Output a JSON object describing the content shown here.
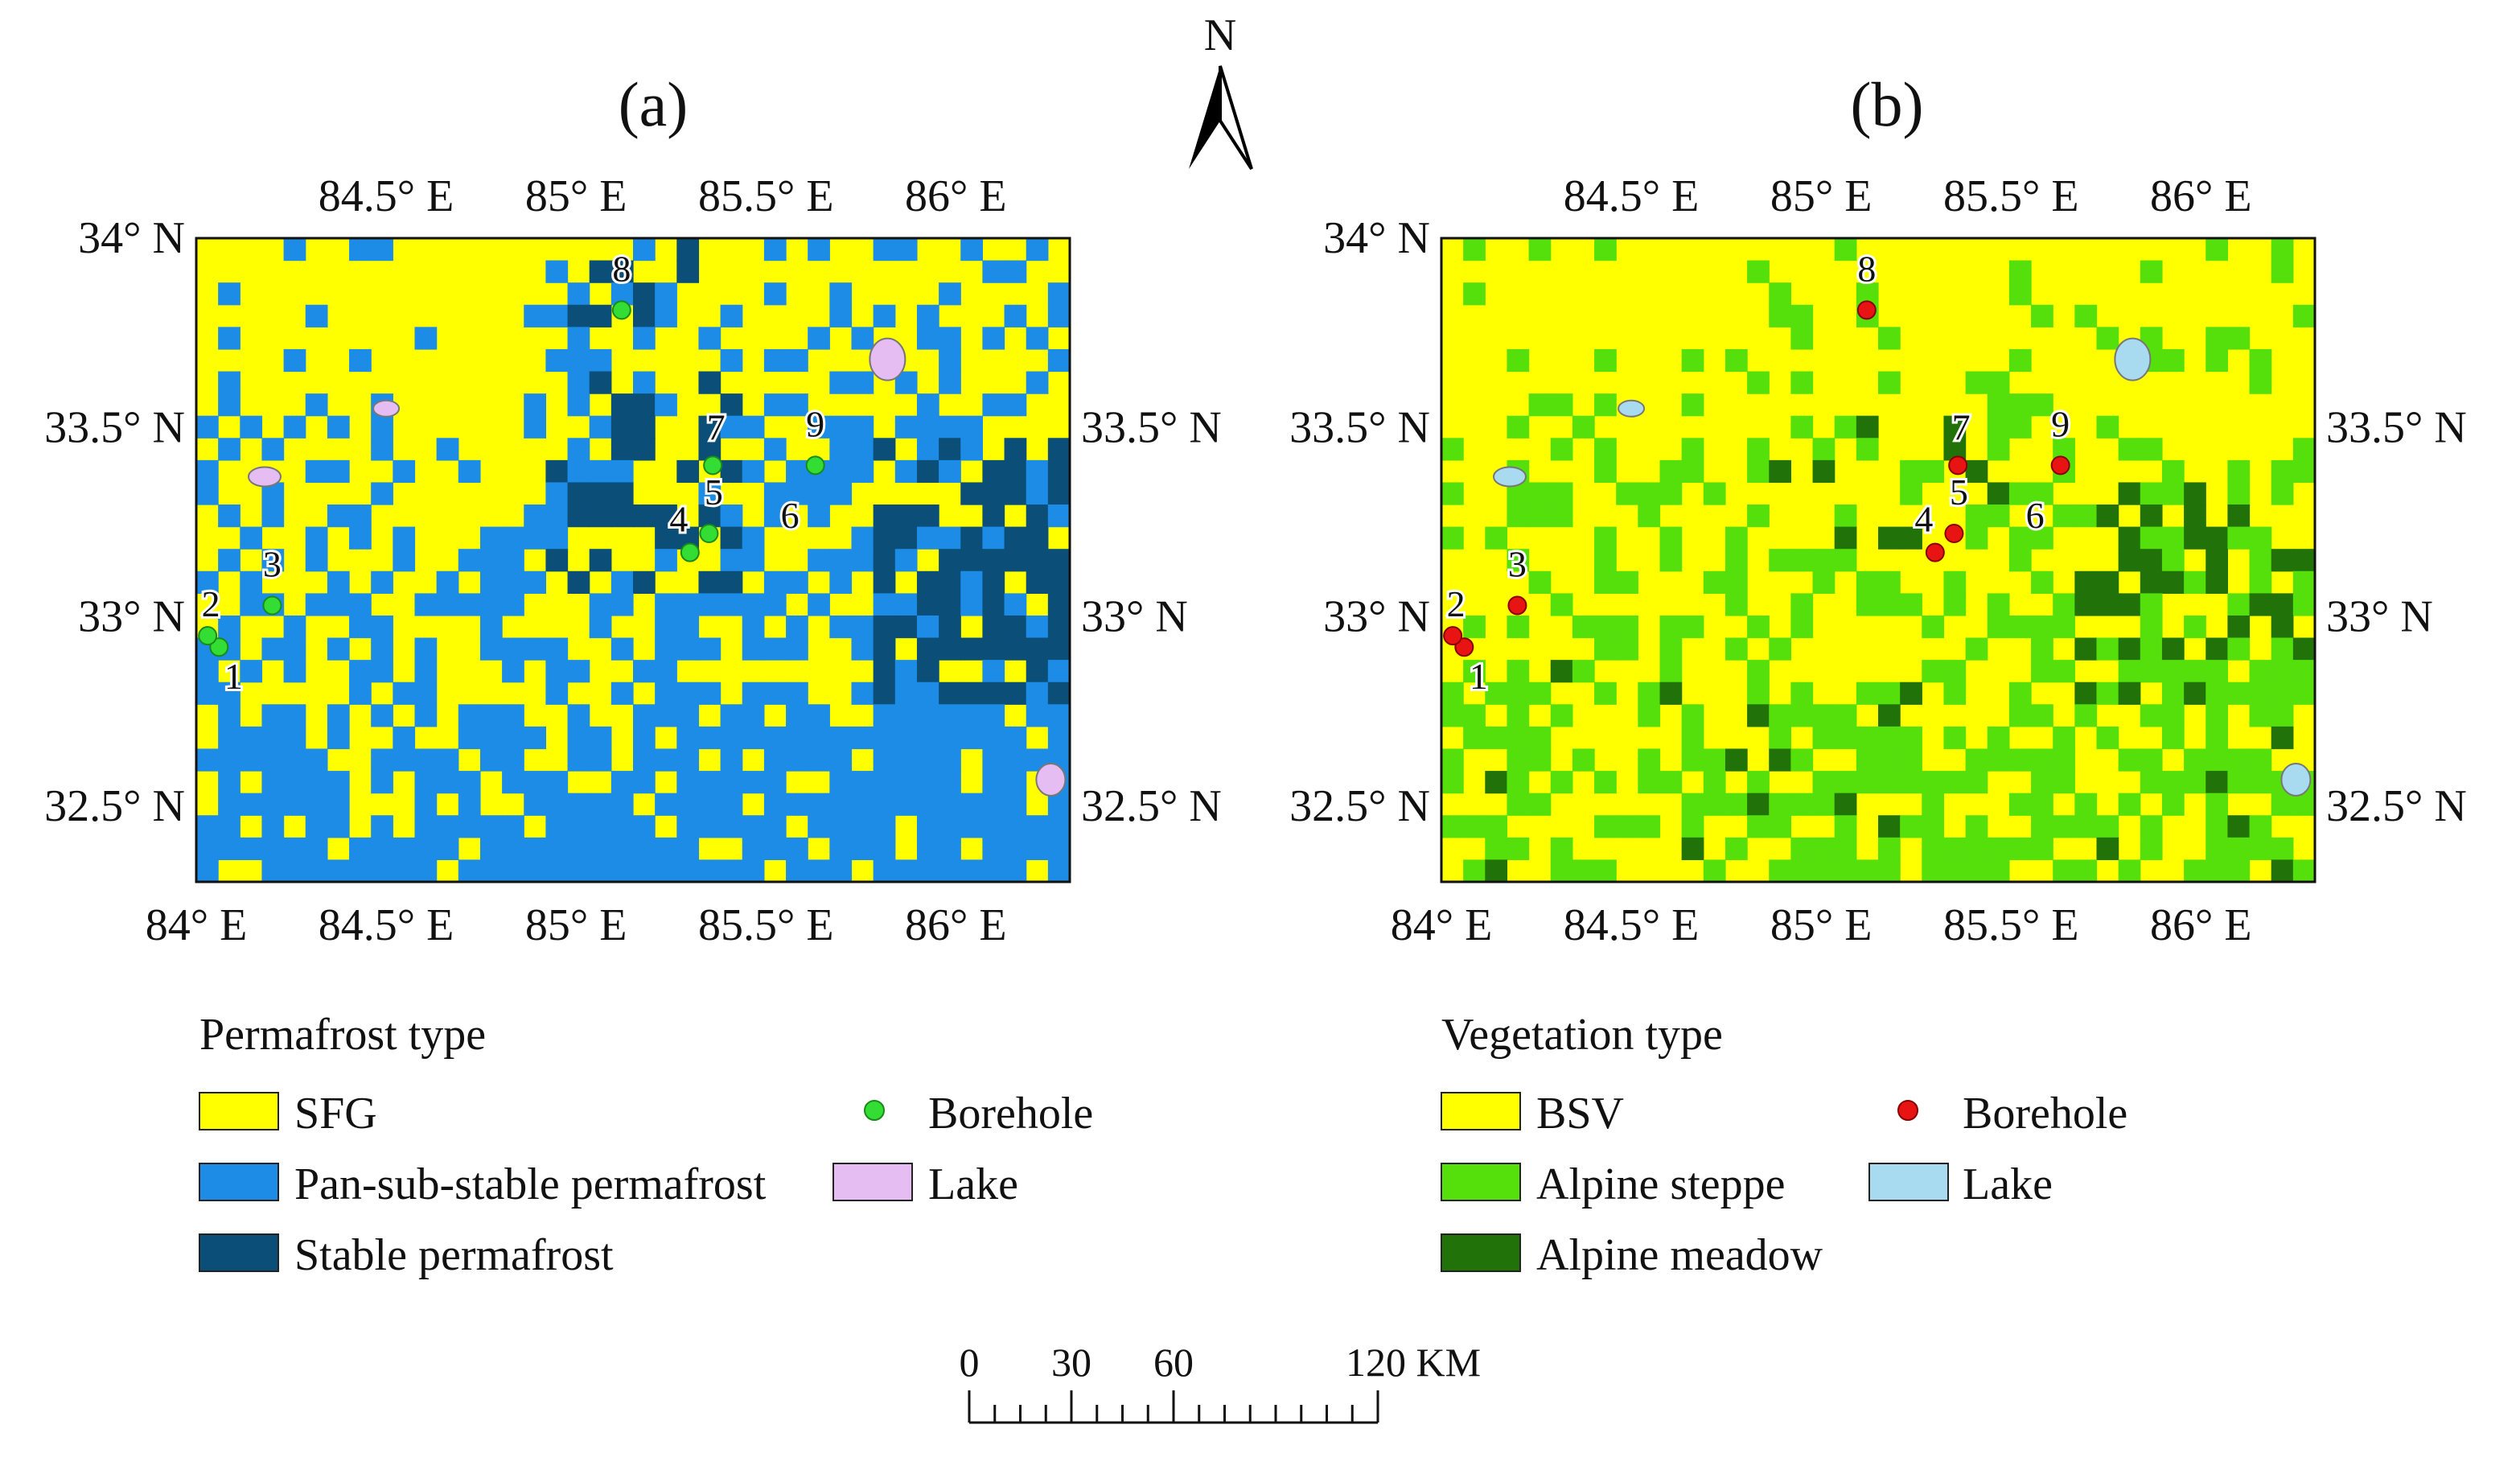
{
  "north_arrow": {
    "label": "N"
  },
  "panels": [
    {
      "id": "a",
      "tag": "(a)",
      "colors": {
        "base": "#ffff00",
        "c1": "#1d8ce6",
        "c2": "#0b4f79",
        "lake": "#e6bdf2",
        "borehole": "#33dd33",
        "borehole_stroke": "#1a8a1a"
      },
      "seed": 7,
      "legend": {
        "title": "Permafrost type",
        "classes": [
          {
            "label": "SFG",
            "color": "#ffff00"
          },
          {
            "label": "Pan-sub-stable permafrost",
            "color": "#1d8ce6"
          },
          {
            "label": "Stable permafrost",
            "color": "#0b4f79"
          }
        ],
        "borehole_label": "Borehole",
        "lake_label": "Lake"
      }
    },
    {
      "id": "b",
      "tag": "(b)",
      "colors": {
        "base": "#ffff00",
        "c1": "#55e00c",
        "c2": "#217309",
        "lake": "#a8daf0",
        "borehole": "#e81414",
        "borehole_stroke": "#8a0000"
      },
      "seed": 19,
      "legend": {
        "title": "Vegetation type",
        "classes": [
          {
            "label": "BSV",
            "color": "#ffff00"
          },
          {
            "label": "Alpine steppe",
            "color": "#55e00c"
          },
          {
            "label": "Alpine meadow",
            "color": "#217309"
          }
        ],
        "borehole_label": "Borehole",
        "lake_label": "Lake"
      }
    }
  ],
  "axes": {
    "lon_range": [
      84.0,
      86.3
    ],
    "lat_range": [
      32.3,
      34.0
    ],
    "bottom_ticks": [
      {
        "value": 84.0,
        "label": "84° E"
      },
      {
        "value": 84.5,
        "label": "84.5° E"
      },
      {
        "value": 85.0,
        "label": "85° E"
      },
      {
        "value": 85.5,
        "label": "85.5° E"
      },
      {
        "value": 86.0,
        "label": "86° E"
      }
    ],
    "top_ticks": [
      {
        "value": 84.5,
        "label": "84.5° E"
      },
      {
        "value": 85.0,
        "label": "85° E"
      },
      {
        "value": 85.5,
        "label": "85.5° E"
      },
      {
        "value": 86.0,
        "label": "86° E"
      }
    ],
    "left_ticks": [
      {
        "value": 34.0,
        "label": "34° N"
      },
      {
        "value": 33.5,
        "label": "33.5° N"
      },
      {
        "value": 33.0,
        "label": "33° N"
      },
      {
        "value": 32.5,
        "label": "32.5° N"
      }
    ],
    "right_ticks": [
      {
        "value": 33.5,
        "label": "33.5° N"
      },
      {
        "value": 33.0,
        "label": "33° N"
      },
      {
        "value": 32.5,
        "label": "32.5° N"
      }
    ]
  },
  "boreholes": [
    {
      "id": "1",
      "lon": 84.06,
      "lat": 32.92
    },
    {
      "id": "2",
      "lon": 84.03,
      "lat": 32.95
    },
    {
      "id": "3",
      "lon": 84.2,
      "lat": 33.03
    },
    {
      "id": "4",
      "lon": 85.3,
      "lat": 33.17
    },
    {
      "id": "5",
      "lon": 85.35,
      "lat": 33.22
    },
    {
      "id": "6",
      "lon": 85.36,
      "lat": 33.21
    },
    {
      "id": "7",
      "lon": 85.36,
      "lat": 33.4
    },
    {
      "id": "8",
      "lon": 85.12,
      "lat": 33.81
    },
    {
      "id": "9",
      "lon": 85.63,
      "lat": 33.4
    }
  ],
  "scale_bar": {
    "ticks": [
      {
        "km": 0,
        "label": "0"
      },
      {
        "km": 30,
        "label": "30"
      },
      {
        "km": 60,
        "label": "60"
      },
      {
        "km": 120,
        "label": "120 KM"
      }
    ],
    "max_km": 120
  }
}
